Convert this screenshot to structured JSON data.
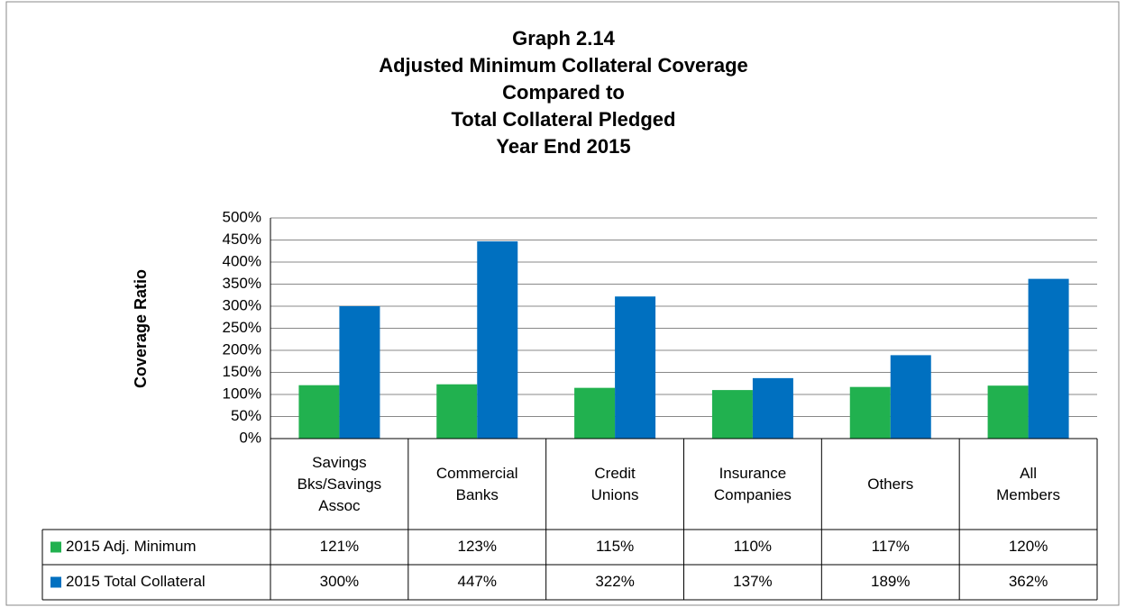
{
  "chart_data": {
    "type": "bar",
    "title": [
      "Graph 2.14",
      "Adjusted Minimum Collateral Coverage",
      "Compared to",
      "Total Collateral Pledged",
      "Year End 2015"
    ],
    "y_label": "Coverage Ratio",
    "categories": [
      "Savings Bks/Savings Assoc",
      "Commercial Banks",
      "Credit Unions",
      "Insurance Companies",
      "Others",
      "All Members"
    ],
    "series": [
      {
        "name": "2015 Adj. Minimum",
        "color": "#21b14f",
        "values": [
          121,
          123,
          115,
          110,
          117,
          120
        ],
        "value_labels": [
          "121%",
          "123%",
          "115%",
          "110%",
          "117%",
          "120%"
        ]
      },
      {
        "name": "2015 Total Collateral",
        "color": "#0070c0",
        "values": [
          300,
          447,
          322,
          137,
          189,
          362
        ],
        "value_labels": [
          "300%",
          "447%",
          "322%",
          "137%",
          "189%",
          "362%"
        ]
      }
    ],
    "ylim": [
      0,
      500
    ],
    "yticks": [
      {
        "value": 0,
        "label": "0%"
      },
      {
        "value": 50,
        "label": "50%"
      },
      {
        "value": 100,
        "label": "100%"
      },
      {
        "value": 150,
        "label": "150%"
      },
      {
        "value": 200,
        "label": "200%"
      },
      {
        "value": 250,
        "label": "250%"
      },
      {
        "value": 300,
        "label": "300%"
      },
      {
        "value": 350,
        "label": "350%"
      },
      {
        "value": 400,
        "label": "400%"
      },
      {
        "value": 450,
        "label": "450%"
      },
      {
        "value": 500,
        "label": "500%"
      }
    ],
    "grid": true
  }
}
